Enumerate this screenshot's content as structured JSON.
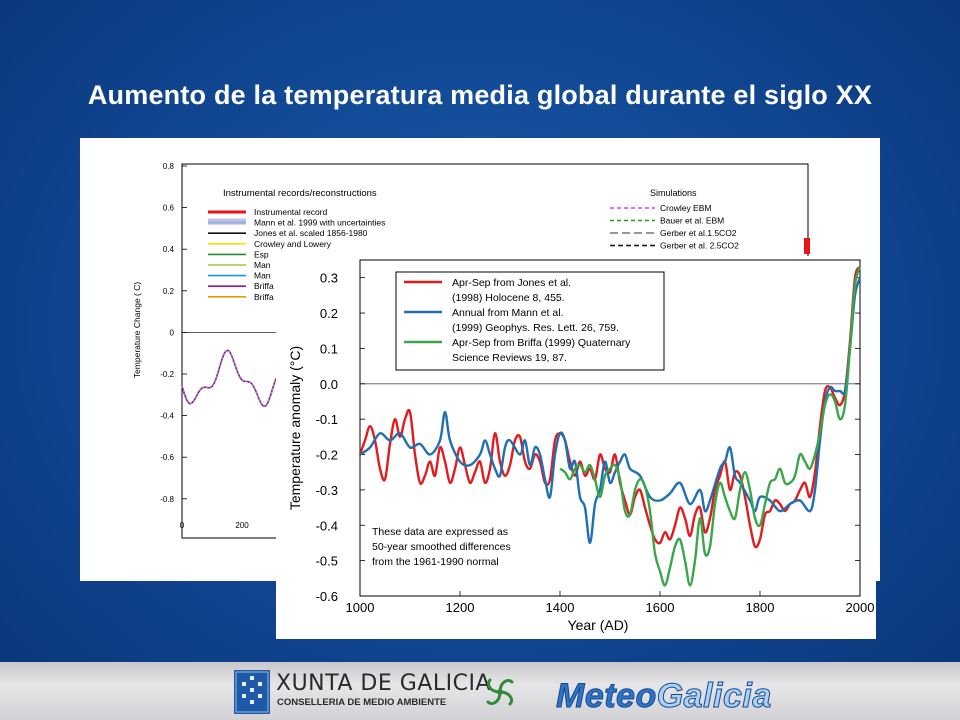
{
  "slide": {
    "title": "Aumento de la temperatura media global durante el siglo XX"
  },
  "back_chart": {
    "ylabel": "Temperature Change ( C)",
    "y_ticks": [
      "0.8",
      "0.6",
      "0.4",
      "0.2",
      "0",
      "-0.2",
      "-0.4",
      "-0.6",
      "-0.8"
    ],
    "x_ticks": [
      "0",
      "200"
    ],
    "legend_left_title": "Instrumental records/reconstructions",
    "legend_left": [
      {
        "label": "Instrumental record",
        "color": "#e8141c"
      },
      {
        "label": "Mann et al. 1999 with uncertainties",
        "color": "#9aa8d8"
      },
      {
        "label": "Jones et al. scaled 1856-1980",
        "color": "#111111"
      },
      {
        "label": "Crowley and Lowery",
        "color": "#f2e600"
      },
      {
        "label": "Esp",
        "color": "#2e8b2e"
      },
      {
        "label": "Man",
        "color": "#9acd32"
      },
      {
        "label": "Man",
        "color": "#1e90ff"
      },
      {
        "label": "Briffa",
        "color": "#8b1a8b"
      },
      {
        "label": "Briffa",
        "color": "#e69a00"
      }
    ],
    "legend_right_title": "Simulations",
    "legend_right": [
      {
        "label": "Crowley EBM",
        "color": "#e040e0",
        "dash": "4,3"
      },
      {
        "label": "Bauer et al. EBM",
        "color": "#2a9a2a",
        "dash": "4,3"
      },
      {
        "label": "Gerber et al.1.5CO2",
        "color": "#777777",
        "dash": "8,4"
      },
      {
        "label": "Gerber et al. 2.5CO2",
        "color": "#111111",
        "dash": "5,3"
      }
    ]
  },
  "chart_data": {
    "type": "line",
    "xlabel": "Year (AD)",
    "ylabel": "Temperature anomaly (°C)",
    "xlim": [
      1000,
      2000
    ],
    "ylim": [
      -0.6,
      0.35
    ],
    "x_ticks": [
      "1000",
      "1200",
      "1400",
      "1600",
      "1800",
      "2000"
    ],
    "y_ticks": [
      "0.3",
      "0.2",
      "0.1",
      "0.0",
      "-0.1",
      "-0.2",
      "-0.3",
      "-0.4",
      "-0.5",
      "-0.6"
    ],
    "note": [
      "These data are expressed as",
      "50-year smoothed differences",
      "from the 1961-1990 normal"
    ],
    "legend": [
      [
        "Apr-Sep from Jones et al.",
        "(1998) Holocene 8, 455."
      ],
      [
        "Annual from Mann et al.",
        "(1999) Geophys. Res. Lett. 26, 759."
      ],
      [
        "Apr-Sep from Briffa (1999) Quaternary",
        "Science Reviews 19, 87."
      ]
    ],
    "series": [
      {
        "color": "#e41a1c",
        "points": [
          [
            1000,
            -0.2
          ],
          [
            1010,
            -0.16
          ],
          [
            1020,
            -0.12
          ],
          [
            1030,
            -0.16
          ],
          [
            1040,
            -0.24
          ],
          [
            1050,
            -0.27
          ],
          [
            1060,
            -0.17
          ],
          [
            1070,
            -0.1
          ],
          [
            1080,
            -0.15
          ],
          [
            1090,
            -0.1
          ],
          [
            1100,
            -0.08
          ],
          [
            1110,
            -0.2
          ],
          [
            1120,
            -0.28
          ],
          [
            1130,
            -0.26
          ],
          [
            1140,
            -0.22
          ],
          [
            1150,
            -0.26
          ],
          [
            1160,
            -0.18
          ],
          [
            1170,
            -0.22
          ],
          [
            1180,
            -0.28
          ],
          [
            1190,
            -0.24
          ],
          [
            1200,
            -0.18
          ],
          [
            1210,
            -0.23
          ],
          [
            1220,
            -0.28
          ],
          [
            1230,
            -0.25
          ],
          [
            1240,
            -0.22
          ],
          [
            1250,
            -0.28
          ],
          [
            1260,
            -0.24
          ],
          [
            1270,
            -0.14
          ],
          [
            1280,
            -0.22
          ],
          [
            1290,
            -0.26
          ],
          [
            1300,
            -0.23
          ],
          [
            1310,
            -0.16
          ],
          [
            1320,
            -0.15
          ],
          [
            1330,
            -0.22
          ],
          [
            1340,
            -0.24
          ],
          [
            1350,
            -0.2
          ],
          [
            1360,
            -0.22
          ],
          [
            1370,
            -0.28
          ],
          [
            1380,
            -0.27
          ],
          [
            1390,
            -0.16
          ],
          [
            1400,
            -0.14
          ],
          [
            1410,
            -0.16
          ],
          [
            1420,
            -0.22
          ],
          [
            1430,
            -0.26
          ],
          [
            1440,
            -0.22
          ],
          [
            1450,
            -0.26
          ],
          [
            1460,
            -0.24
          ],
          [
            1470,
            -0.27
          ],
          [
            1480,
            -0.2
          ],
          [
            1490,
            -0.24
          ],
          [
            1500,
            -0.25
          ],
          [
            1510,
            -0.2
          ],
          [
            1520,
            -0.28
          ],
          [
            1530,
            -0.33
          ],
          [
            1540,
            -0.37
          ],
          [
            1550,
            -0.32
          ],
          [
            1560,
            -0.3
          ],
          [
            1570,
            -0.35
          ],
          [
            1580,
            -0.4
          ],
          [
            1590,
            -0.44
          ],
          [
            1600,
            -0.45
          ],
          [
            1610,
            -0.42
          ],
          [
            1620,
            -0.44
          ],
          [
            1630,
            -0.4
          ],
          [
            1640,
            -0.35
          ],
          [
            1650,
            -0.38
          ],
          [
            1660,
            -0.43
          ],
          [
            1670,
            -0.37
          ],
          [
            1680,
            -0.35
          ],
          [
            1690,
            -0.42
          ],
          [
            1700,
            -0.38
          ],
          [
            1710,
            -0.3
          ],
          [
            1720,
            -0.26
          ],
          [
            1730,
            -0.22
          ],
          [
            1740,
            -0.3
          ],
          [
            1750,
            -0.25
          ],
          [
            1760,
            -0.26
          ],
          [
            1770,
            -0.32
          ],
          [
            1780,
            -0.4
          ],
          [
            1790,
            -0.46
          ],
          [
            1800,
            -0.44
          ],
          [
            1810,
            -0.37
          ],
          [
            1820,
            -0.36
          ],
          [
            1830,
            -0.33
          ],
          [
            1840,
            -0.34
          ],
          [
            1850,
            -0.36
          ],
          [
            1860,
            -0.34
          ],
          [
            1870,
            -0.33
          ],
          [
            1880,
            -0.3
          ],
          [
            1890,
            -0.28
          ],
          [
            1900,
            -0.32
          ],
          [
            1910,
            -0.25
          ],
          [
            1920,
            -0.12
          ],
          [
            1930,
            -0.02
          ],
          [
            1940,
            -0.01
          ],
          [
            1950,
            -0.04
          ],
          [
            1960,
            -0.06
          ],
          [
            1970,
            -0.02
          ],
          [
            1980,
            0.12
          ],
          [
            1990,
            0.3
          ],
          [
            2000,
            0.33
          ]
        ]
      },
      {
        "color": "#1f6fb4",
        "points": [
          [
            1000,
            -0.2
          ],
          [
            1020,
            -0.18
          ],
          [
            1040,
            -0.14
          ],
          [
            1060,
            -0.16
          ],
          [
            1080,
            -0.14
          ],
          [
            1100,
            -0.18
          ],
          [
            1120,
            -0.17
          ],
          [
            1140,
            -0.2
          ],
          [
            1160,
            -0.16
          ],
          [
            1170,
            -0.08
          ],
          [
            1180,
            -0.16
          ],
          [
            1200,
            -0.22
          ],
          [
            1220,
            -0.23
          ],
          [
            1240,
            -0.2
          ],
          [
            1250,
            -0.16
          ],
          [
            1260,
            -0.2
          ],
          [
            1270,
            -0.24
          ],
          [
            1280,
            -0.26
          ],
          [
            1290,
            -0.18
          ],
          [
            1300,
            -0.16
          ],
          [
            1320,
            -0.2
          ],
          [
            1330,
            -0.16
          ],
          [
            1340,
            -0.23
          ],
          [
            1350,
            -0.18
          ],
          [
            1360,
            -0.2
          ],
          [
            1370,
            -0.27
          ],
          [
            1380,
            -0.32
          ],
          [
            1390,
            -0.2
          ],
          [
            1400,
            -0.14
          ],
          [
            1410,
            -0.16
          ],
          [
            1420,
            -0.24
          ],
          [
            1430,
            -0.22
          ],
          [
            1440,
            -0.32
          ],
          [
            1450,
            -0.35
          ],
          [
            1460,
            -0.45
          ],
          [
            1470,
            -0.34
          ],
          [
            1480,
            -0.3
          ],
          [
            1490,
            -0.22
          ],
          [
            1500,
            -0.28
          ],
          [
            1510,
            -0.25
          ],
          [
            1520,
            -0.22
          ],
          [
            1530,
            -0.2
          ],
          [
            1540,
            -0.24
          ],
          [
            1560,
            -0.26
          ],
          [
            1580,
            -0.32
          ],
          [
            1600,
            -0.33
          ],
          [
            1620,
            -0.31
          ],
          [
            1640,
            -0.28
          ],
          [
            1660,
            -0.34
          ],
          [
            1680,
            -0.3
          ],
          [
            1690,
            -0.36
          ],
          [
            1700,
            -0.33
          ],
          [
            1720,
            -0.24
          ],
          [
            1730,
            -0.22
          ],
          [
            1740,
            -0.18
          ],
          [
            1750,
            -0.26
          ],
          [
            1760,
            -0.28
          ],
          [
            1780,
            -0.33
          ],
          [
            1790,
            -0.36
          ],
          [
            1800,
            -0.32
          ],
          [
            1820,
            -0.33
          ],
          [
            1840,
            -0.36
          ],
          [
            1860,
            -0.34
          ],
          [
            1880,
            -0.33
          ],
          [
            1900,
            -0.36
          ],
          [
            1910,
            -0.3
          ],
          [
            1920,
            -0.16
          ],
          [
            1930,
            -0.05
          ],
          [
            1940,
            -0.01
          ],
          [
            1950,
            -0.02
          ],
          [
            1960,
            -0.02
          ],
          [
            1970,
            -0.02
          ],
          [
            1980,
            0.1
          ],
          [
            1990,
            0.25
          ],
          [
            2000,
            0.3
          ]
        ]
      },
      {
        "color": "#3aa64a",
        "points": [
          [
            1400,
            -0.24
          ],
          [
            1410,
            -0.25
          ],
          [
            1420,
            -0.27
          ],
          [
            1430,
            -0.24
          ],
          [
            1440,
            -0.23
          ],
          [
            1450,
            -0.25
          ],
          [
            1460,
            -0.23
          ],
          [
            1470,
            -0.27
          ],
          [
            1480,
            -0.32
          ],
          [
            1490,
            -0.26
          ],
          [
            1500,
            -0.24
          ],
          [
            1510,
            -0.23
          ],
          [
            1520,
            -0.27
          ],
          [
            1530,
            -0.36
          ],
          [
            1540,
            -0.37
          ],
          [
            1550,
            -0.3
          ],
          [
            1560,
            -0.27
          ],
          [
            1570,
            -0.29
          ],
          [
            1580,
            -0.36
          ],
          [
            1590,
            -0.48
          ],
          [
            1600,
            -0.53
          ],
          [
            1610,
            -0.57
          ],
          [
            1620,
            -0.52
          ],
          [
            1630,
            -0.46
          ],
          [
            1640,
            -0.44
          ],
          [
            1650,
            -0.5
          ],
          [
            1660,
            -0.57
          ],
          [
            1670,
            -0.5
          ],
          [
            1680,
            -0.38
          ],
          [
            1690,
            -0.48
          ],
          [
            1700,
            -0.46
          ],
          [
            1710,
            -0.34
          ],
          [
            1720,
            -0.28
          ],
          [
            1730,
            -0.32
          ],
          [
            1740,
            -0.36
          ],
          [
            1750,
            -0.38
          ],
          [
            1760,
            -0.3
          ],
          [
            1770,
            -0.25
          ],
          [
            1780,
            -0.3
          ],
          [
            1790,
            -0.38
          ],
          [
            1800,
            -0.4
          ],
          [
            1810,
            -0.34
          ],
          [
            1820,
            -0.28
          ],
          [
            1830,
            -0.27
          ],
          [
            1840,
            -0.24
          ],
          [
            1850,
            -0.28
          ],
          [
            1860,
            -0.28
          ],
          [
            1870,
            -0.26
          ],
          [
            1880,
            -0.2
          ],
          [
            1890,
            -0.22
          ],
          [
            1900,
            -0.24
          ],
          [
            1910,
            -0.2
          ],
          [
            1920,
            -0.14
          ],
          [
            1930,
            -0.06
          ],
          [
            1940,
            -0.03
          ],
          [
            1950,
            -0.05
          ],
          [
            1960,
            -0.1
          ],
          [
            1970,
            -0.06
          ],
          [
            1980,
            0.1
          ],
          [
            1990,
            0.28
          ],
          [
            2000,
            0.33
          ]
        ]
      }
    ]
  },
  "footer": {
    "org_name": "XUNTA DE GALICIA",
    "org_sub": "CONSELLERIA DE MEDIO AMBIENTE",
    "brand_a": "Meteo",
    "brand_b": "Galicia",
    "colors": {
      "brand_dark": "#2f73c8",
      "brand_light": "#a9d2f5",
      "shield": "#1f5aa8"
    }
  }
}
